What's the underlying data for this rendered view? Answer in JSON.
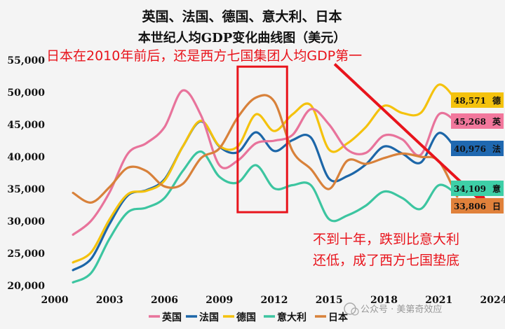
{
  "chart_data": {
    "type": "line",
    "title": "英国、法国、德国、意大利、日本",
    "subtitle": "本世纪人均GDP变化曲线图（美元）",
    "xlabel": "",
    "ylabel": "",
    "xlim": [
      2000,
      2024
    ],
    "ylim": [
      20000,
      55000
    ],
    "x_ticks": [
      2000,
      2003,
      2006,
      2009,
      2012,
      2015,
      2018,
      2021,
      2024
    ],
    "y_ticks": [
      20000,
      25000,
      30000,
      35000,
      40000,
      45000,
      50000,
      55000
    ],
    "x_tick_labels": [
      "2000",
      "2003",
      "2006",
      "2009",
      "2012",
      "2015",
      "2018",
      "2021",
      "2024"
    ],
    "y_tick_labels": [
      "20,000",
      "25,000",
      "30,000",
      "35,000",
      "40,000",
      "45,000",
      "50,000",
      "55,000"
    ],
    "x": [
      2001,
      2002,
      2003,
      2004,
      2005,
      2006,
      2007,
      2008,
      2009,
      2010,
      2011,
      2012,
      2013,
      2014,
      2015,
      2016,
      2017,
      2018,
      2019,
      2020,
      2021,
      2022
    ],
    "series": [
      {
        "name": "英国",
        "color": "#e8739b",
        "values": [
          27900,
          30100,
          34500,
          40500,
          42100,
          44600,
          50300,
          46400,
          38700,
          39400,
          42100,
          42500,
          43400,
          47400,
          45000,
          41100,
          40600,
          43300,
          42700,
          40300,
          46600,
          45268
        ]
      },
      {
        "name": "法国",
        "color": "#1c66a8",
        "values": [
          22400,
          24200,
          29600,
          34000,
          34800,
          36500,
          41600,
          45500,
          41600,
          40700,
          43800,
          40900,
          42600,
          43000,
          36600,
          37000,
          38800,
          41600,
          40500,
          39100,
          43700,
          40976
        ]
      },
      {
        "name": "德国",
        "color": "#f4c20d",
        "values": [
          23600,
          25200,
          30300,
          34200,
          34700,
          36300,
          41600,
          45600,
          41700,
          41600,
          46600,
          44000,
          46600,
          48000,
          41100,
          42100,
          44600,
          47900,
          46800,
          46800,
          51200,
          48571
        ]
      },
      {
        "name": "意大利",
        "color": "#3cc5a0",
        "values": [
          20500,
          22000,
          27300,
          31400,
          32100,
          33600,
          37800,
          40800,
          36900,
          36000,
          38700,
          35100,
          35600,
          35600,
          30300,
          30900,
          32400,
          34600,
          33600,
          31900,
          35600,
          34109
        ]
      },
      {
        "name": "日本",
        "color": "#d8813a",
        "values": [
          34400,
          32900,
          35300,
          38300,
          37800,
          35400,
          35800,
          39800,
          41300,
          46100,
          49200,
          48600,
          40900,
          38100,
          35000,
          39400,
          38900,
          39800,
          40500,
          40000,
          39300,
          33806
        ]
      }
    ],
    "end_labels": [
      {
        "series": "德国",
        "value_text": "48,571",
        "name": "德",
        "color": "#f4c20d"
      },
      {
        "series": "英国",
        "value_text": "45,268",
        "name": "英",
        "color": "#f2779c"
      },
      {
        "series": "法国",
        "value_text": "40,976",
        "name": "法",
        "color": "#1f68b0"
      },
      {
        "series": "意大利",
        "value_text": "34,109",
        "name": "意",
        "color": "#3ecfa7"
      },
      {
        "series": "日本",
        "value_text": "33,806",
        "name": "日",
        "color": "#e0813b"
      }
    ],
    "annotations": {
      "top": "日本在2010年前后，还是西方七国集团人均GDP第一",
      "bottom_line1": "不到十年，跌到比意大利",
      "bottom_line2": "还低，成了西方七国垫底",
      "highlight_range_x": [
        2010,
        2012.7
      ],
      "highlight_range_y": [
        31400,
        54000
      ],
      "arrow_from": [
        2015.3,
        54400
      ],
      "arrow_to": [
        2023.4,
        32900
      ]
    },
    "legend_position": "bottom",
    "grid": false
  },
  "watermark": "公众号 · 美第奇效应",
  "colors": {
    "accent_red": "#e8141c",
    "background": "#f4f4f4"
  }
}
